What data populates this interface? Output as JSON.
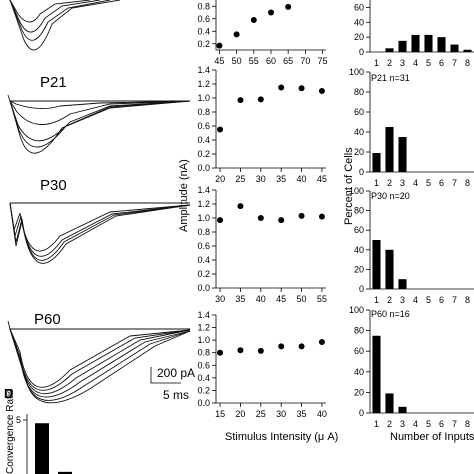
{
  "colors": {
    "ink": "#000000",
    "background": "#ffffff"
  },
  "traces": {
    "labels": [
      "P21",
      "P30",
      "P60"
    ],
    "scale_bar": {
      "amplitude": "200 pA",
      "time": "5 ms"
    }
  },
  "panel_d": {
    "label": "D",
    "ylabel": "Convergence Ratio",
    "values": [
      4.7,
      0.2
    ]
  },
  "scatter_shared": {
    "ylabel": "Amplitude (nA)",
    "xlabel": "Stimulus Intensity (μ A)"
  },
  "hist_shared": {
    "ylabel": "Percent of Cells",
    "xlabel": "Number of Inputs"
  },
  "chart_data": [
    {
      "id": "scatter-0",
      "type": "scatter",
      "x": [
        45,
        50,
        55,
        60,
        65
      ],
      "y": [
        0.17,
        0.35,
        0.58,
        0.7,
        0.79
      ],
      "xticks": [
        45,
        50,
        55,
        60,
        65,
        70,
        75
      ],
      "yticks": [
        0.2,
        0.4,
        0.6,
        0.8
      ],
      "xlim": [
        44,
        76
      ],
      "ylim": [
        0.1,
        0.9
      ]
    },
    {
      "id": "scatter-p21",
      "type": "scatter",
      "x": [
        20,
        25,
        30,
        35,
        40,
        45
      ],
      "y": [
        0.55,
        0.97,
        0.98,
        1.15,
        1.14,
        1.1
      ],
      "xticks": [
        20,
        25,
        30,
        35,
        40,
        45
      ],
      "yticks": [
        0.0,
        0.2,
        0.4,
        0.6,
        0.8,
        1.0,
        1.2,
        1.4
      ],
      "xlim": [
        19,
        46
      ],
      "ylim": [
        0.0,
        1.4
      ]
    },
    {
      "id": "scatter-p30",
      "type": "scatter",
      "x": [
        30,
        35,
        40,
        45,
        50,
        55
      ],
      "y": [
        0.97,
        1.17,
        1.0,
        0.97,
        1.03,
        1.02
      ],
      "xticks": [
        30,
        35,
        40,
        45,
        50,
        55
      ],
      "yticks": [
        0.0,
        0.2,
        0.4,
        0.6,
        0.8,
        1.0,
        1.2,
        1.4
      ],
      "xlim": [
        29,
        56
      ],
      "ylim": [
        0.0,
        1.4
      ]
    },
    {
      "id": "scatter-p60",
      "type": "scatter",
      "x": [
        15,
        20,
        25,
        30,
        35,
        40
      ],
      "y": [
        0.8,
        0.84,
        0.83,
        0.9,
        0.9,
        0.97
      ],
      "xticks": [
        15,
        20,
        25,
        30,
        35,
        40
      ],
      "yticks": [
        0.0,
        0.2,
        0.4,
        0.6,
        0.8,
        1.0,
        1.2,
        1.4
      ],
      "xlim": [
        14,
        41
      ],
      "ylim": [
        0.0,
        1.4
      ]
    },
    {
      "id": "hist-0",
      "type": "bar",
      "categories": [
        "1",
        "2",
        "3",
        "4",
        "5",
        "6",
        "7",
        "8"
      ],
      "values": [
        0,
        5,
        15,
        23,
        23,
        20,
        10,
        3
      ],
      "yticks": [
        0,
        20,
        40,
        60
      ],
      "ylim": [
        0,
        70
      ]
    },
    {
      "id": "hist-p21",
      "type": "bar",
      "annotation": "P21 n=31",
      "categories": [
        "1",
        "2",
        "3",
        "4",
        "5",
        "6",
        "7",
        "8"
      ],
      "values": [
        19,
        45,
        35,
        0,
        0,
        0,
        0,
        0
      ],
      "yticks": [
        0,
        20,
        40,
        60,
        80,
        100
      ],
      "ylim": [
        0,
        100
      ]
    },
    {
      "id": "hist-p30",
      "type": "bar",
      "annotation": "P30 n=20",
      "categories": [
        "1",
        "2",
        "3",
        "4",
        "5",
        "6",
        "7",
        "8"
      ],
      "values": [
        50,
        40,
        10,
        0,
        0,
        0,
        0,
        0
      ],
      "yticks": [
        0,
        20,
        40,
        60,
        80,
        100
      ],
      "ylim": [
        0,
        100
      ]
    },
    {
      "id": "hist-p60",
      "type": "bar",
      "annotation": "P60 n=16",
      "categories": [
        "1",
        "2",
        "3",
        "4",
        "5",
        "6",
        "7",
        "8"
      ],
      "values": [
        75,
        19,
        6,
        0,
        0,
        0,
        0,
        0
      ],
      "yticks": [
        0,
        20,
        40,
        60,
        80,
        100
      ],
      "ylim": [
        0,
        100
      ]
    }
  ]
}
